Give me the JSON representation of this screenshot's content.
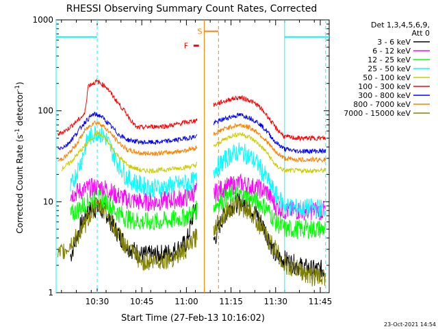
{
  "chart_data": {
    "type": "line",
    "title": "RHESSI Observing Summary Count Rates, Corrected",
    "xlabel": "Start Time (27-Feb-13 10:16:02)",
    "ylabel_main": "Corrected Count Rate (s",
    "ylabel_sup1": "-1",
    "ylabel_mid": " detector",
    "ylabel_sup2": "-1",
    "ylabel_end": ")",
    "y_scale": "log",
    "ylim": [
      1,
      1000
    ],
    "xlim_minutes": [
      10.27,
      11.8
    ],
    "x_tick_labels": [
      "10:30",
      "10:45",
      "11:00",
      "11:15",
      "11:30",
      "11:45"
    ],
    "x_ticks": [
      10.5,
      10.75,
      11.0,
      11.25,
      11.5,
      11.75
    ],
    "y_tick_labels": [
      "1",
      "10",
      "100",
      "1000"
    ],
    "y_ticks": [
      1,
      10,
      100,
      1000
    ],
    "legend_header": [
      "Det 1,3,4,5,6,9,",
      "Att 0"
    ],
    "legend_position": "top-right-outside",
    "series": [
      {
        "name": "3 - 6 keV",
        "color": "#000000",
        "points": [
          [
            10.35,
            2.5
          ],
          [
            10.4,
            5
          ],
          [
            10.45,
            8
          ],
          [
            10.5,
            8.5
          ],
          [
            10.55,
            7.5
          ],
          [
            10.6,
            5
          ],
          [
            10.67,
            3.2
          ],
          [
            10.75,
            2.6
          ],
          [
            10.83,
            2.6
          ],
          [
            10.92,
            2.8
          ],
          [
            11.0,
            3.5
          ],
          [
            11.05,
            9
          ],
          [
            11.15,
            3.5
          ],
          [
            11.2,
            6.5
          ],
          [
            11.25,
            9
          ],
          [
            11.3,
            10
          ],
          [
            11.35,
            9
          ],
          [
            11.4,
            7
          ],
          [
            11.45,
            4.5
          ],
          [
            11.5,
            2.5
          ],
          [
            11.55,
            2.3
          ],
          [
            11.62,
            2.0
          ],
          [
            11.7,
            1.8
          ],
          [
            11.78,
            1.8
          ]
        ]
      },
      {
        "name": "6 - 12 keV",
        "color": "#ff00ff",
        "points": [
          [
            10.35,
            12
          ],
          [
            10.4,
            13
          ],
          [
            10.45,
            14
          ],
          [
            10.5,
            14.5
          ],
          [
            10.55,
            14
          ],
          [
            10.6,
            12
          ],
          [
            10.67,
            10.5
          ],
          [
            10.75,
            10
          ],
          [
            10.83,
            10
          ],
          [
            10.92,
            10.5
          ],
          [
            11.0,
            11
          ],
          [
            11.05,
            13
          ],
          [
            11.15,
            12
          ],
          [
            11.2,
            14
          ],
          [
            11.25,
            15
          ],
          [
            11.3,
            16
          ],
          [
            11.35,
            15
          ],
          [
            11.4,
            14
          ],
          [
            11.45,
            13
          ],
          [
            11.5,
            9
          ],
          [
            11.55,
            8
          ],
          [
            11.62,
            8
          ],
          [
            11.7,
            8
          ],
          [
            11.78,
            8
          ]
        ]
      },
      {
        "name": "12 - 25 keV",
        "color": "#00ff00",
        "points": [
          [
            10.35,
            7
          ],
          [
            10.4,
            8.5
          ],
          [
            10.45,
            10
          ],
          [
            10.5,
            11
          ],
          [
            10.55,
            10
          ],
          [
            10.6,
            8
          ],
          [
            10.67,
            6.5
          ],
          [
            10.75,
            6
          ],
          [
            10.83,
            6
          ],
          [
            10.92,
            6.3
          ],
          [
            11.0,
            6.8
          ],
          [
            11.05,
            8
          ],
          [
            11.15,
            9
          ],
          [
            11.2,
            10.5
          ],
          [
            11.25,
            11.5
          ],
          [
            11.3,
            12
          ],
          [
            11.35,
            11
          ],
          [
            11.4,
            10
          ],
          [
            11.45,
            8.5
          ],
          [
            11.5,
            6
          ],
          [
            11.55,
            5
          ],
          [
            11.62,
            5
          ],
          [
            11.7,
            5
          ],
          [
            11.78,
            5
          ]
        ]
      },
      {
        "name": "25 - 50 keV",
        "color": "#00ffff",
        "points": [
          [
            10.35,
            14
          ],
          [
            10.4,
            25
          ],
          [
            10.45,
            50
          ],
          [
            10.5,
            60
          ],
          [
            10.55,
            50
          ],
          [
            10.6,
            30
          ],
          [
            10.67,
            18
          ],
          [
            10.75,
            15
          ],
          [
            10.83,
            14
          ],
          [
            10.92,
            15
          ],
          [
            11.0,
            16
          ],
          [
            11.05,
            17
          ],
          [
            11.15,
            22
          ],
          [
            11.2,
            27
          ],
          [
            11.25,
            33
          ],
          [
            11.3,
            36
          ],
          [
            11.35,
            32
          ],
          [
            11.4,
            26
          ],
          [
            11.45,
            18
          ],
          [
            11.5,
            12
          ],
          [
            11.55,
            9
          ],
          [
            11.62,
            8.5
          ],
          [
            11.7,
            8.5
          ],
          [
            11.78,
            8.5
          ]
        ]
      },
      {
        "name": "50 - 100 keV",
        "color": "#cccc00",
        "points": [
          [
            10.3,
            23
          ],
          [
            10.35,
            27
          ],
          [
            10.4,
            35
          ],
          [
            10.45,
            45
          ],
          [
            10.5,
            58
          ],
          [
            10.55,
            48
          ],
          [
            10.6,
            35
          ],
          [
            10.67,
            25
          ],
          [
            10.75,
            22
          ],
          [
            10.83,
            22
          ],
          [
            10.92,
            23
          ],
          [
            11.0,
            24
          ],
          [
            11.05,
            25
          ],
          [
            11.15,
            40
          ],
          [
            11.2,
            47
          ],
          [
            11.25,
            53
          ],
          [
            11.3,
            56
          ],
          [
            11.35,
            52
          ],
          [
            11.4,
            44
          ],
          [
            11.45,
            35
          ],
          [
            11.5,
            25
          ],
          [
            11.55,
            22
          ],
          [
            11.62,
            22
          ],
          [
            11.7,
            22
          ],
          [
            11.78,
            22
          ]
        ]
      },
      {
        "name": "100 - 300 keV",
        "color": "#ff0000",
        "points": [
          [
            10.28,
            55
          ],
          [
            10.33,
            62
          ],
          [
            10.38,
            75
          ],
          [
            10.43,
            92
          ],
          [
            10.45,
            190
          ],
          [
            10.5,
            210
          ],
          [
            10.55,
            185
          ],
          [
            10.6,
            135
          ],
          [
            10.67,
            90
          ],
          [
            10.72,
            65
          ],
          [
            10.8,
            67
          ],
          [
            10.9,
            68
          ],
          [
            11.0,
            75
          ],
          [
            11.05,
            78
          ],
          [
            11.15,
            115
          ],
          [
            11.2,
            125
          ],
          [
            11.25,
            135
          ],
          [
            11.3,
            140
          ],
          [
            11.35,
            132
          ],
          [
            11.4,
            115
          ],
          [
            11.45,
            90
          ],
          [
            11.5,
            65
          ],
          [
            11.55,
            52
          ],
          [
            11.62,
            50
          ],
          [
            11.7,
            50
          ],
          [
            11.78,
            50
          ]
        ]
      },
      {
        "name": "300 - 800 keV",
        "color": "#0000ff",
        "points": [
          [
            10.28,
            38
          ],
          [
            10.33,
            42
          ],
          [
            10.38,
            55
          ],
          [
            10.43,
            75
          ],
          [
            10.48,
            92
          ],
          [
            10.52,
            88
          ],
          [
            10.57,
            70
          ],
          [
            10.62,
            55
          ],
          [
            10.67,
            48
          ],
          [
            10.75,
            45
          ],
          [
            10.83,
            45
          ],
          [
            10.92,
            47
          ],
          [
            11.0,
            50
          ],
          [
            11.05,
            52
          ],
          [
            11.15,
            72
          ],
          [
            11.2,
            80
          ],
          [
            11.25,
            86
          ],
          [
            11.3,
            90
          ],
          [
            11.35,
            85
          ],
          [
            11.4,
            75
          ],
          [
            11.45,
            60
          ],
          [
            11.5,
            45
          ],
          [
            11.55,
            38
          ],
          [
            11.62,
            36
          ],
          [
            11.7,
            36
          ],
          [
            11.78,
            36
          ]
        ]
      },
      {
        "name": "800 - 7000 keV",
        "color": "#ff8000",
        "points": [
          [
            10.28,
            28
          ],
          [
            10.33,
            32
          ],
          [
            10.38,
            42
          ],
          [
            10.43,
            60
          ],
          [
            10.48,
            75
          ],
          [
            10.52,
            72
          ],
          [
            10.57,
            58
          ],
          [
            10.62,
            45
          ],
          [
            10.67,
            37
          ],
          [
            10.75,
            34
          ],
          [
            10.83,
            34
          ],
          [
            10.92,
            35
          ],
          [
            11.0,
            37
          ],
          [
            11.05,
            39
          ],
          [
            11.15,
            55
          ],
          [
            11.2,
            62
          ],
          [
            11.25,
            67
          ],
          [
            11.3,
            70
          ],
          [
            11.35,
            66
          ],
          [
            11.4,
            58
          ],
          [
            11.45,
            46
          ],
          [
            11.5,
            35
          ],
          [
            11.55,
            30
          ],
          [
            11.62,
            29
          ],
          [
            11.7,
            29
          ],
          [
            11.78,
            29
          ]
        ]
      },
      {
        "name": "7000 - 15000 keV",
        "color": "#808000",
        "points": [
          [
            10.28,
            2.5
          ],
          [
            10.33,
            3
          ],
          [
            10.38,
            4
          ],
          [
            10.42,
            5
          ],
          [
            10.47,
            8
          ],
          [
            10.5,
            9
          ],
          [
            10.55,
            8
          ],
          [
            10.6,
            5
          ],
          [
            10.67,
            3
          ],
          [
            10.75,
            2.2
          ],
          [
            10.83,
            2.2
          ],
          [
            10.92,
            2.4
          ],
          [
            11.0,
            3
          ],
          [
            11.05,
            4
          ],
          [
            11.15,
            5
          ],
          [
            11.2,
            7
          ],
          [
            11.25,
            8.5
          ],
          [
            11.3,
            9
          ],
          [
            11.35,
            8
          ],
          [
            11.4,
            6
          ],
          [
            11.45,
            4
          ],
          [
            11.5,
            3
          ],
          [
            11.55,
            2
          ],
          [
            11.62,
            1.8
          ],
          [
            11.7,
            1.5
          ],
          [
            11.78,
            1.5
          ]
        ]
      }
    ],
    "markers": {
      "night_bars": {
        "color": "#00ffff",
        "y": 650,
        "segments": [
          [
            10.27,
            10.5
          ],
          [
            11.55,
            11.8
          ]
        ]
      },
      "solid_lines_cyan": [
        10.27,
        11.55
      ],
      "dashed_lines_cyan": [
        10.5,
        11.78
      ],
      "saa": {
        "label": "S",
        "color": "#ff8000",
        "y": 750,
        "start": 11.1,
        "end": 11.18,
        "dashed_end": 11.18
      },
      "flare": {
        "label": "F",
        "color": "#ff0000",
        "y": 520,
        "start": 11.04,
        "end": 11.07
      }
    },
    "footer_date": "23-Oct-2021 14:54"
  }
}
